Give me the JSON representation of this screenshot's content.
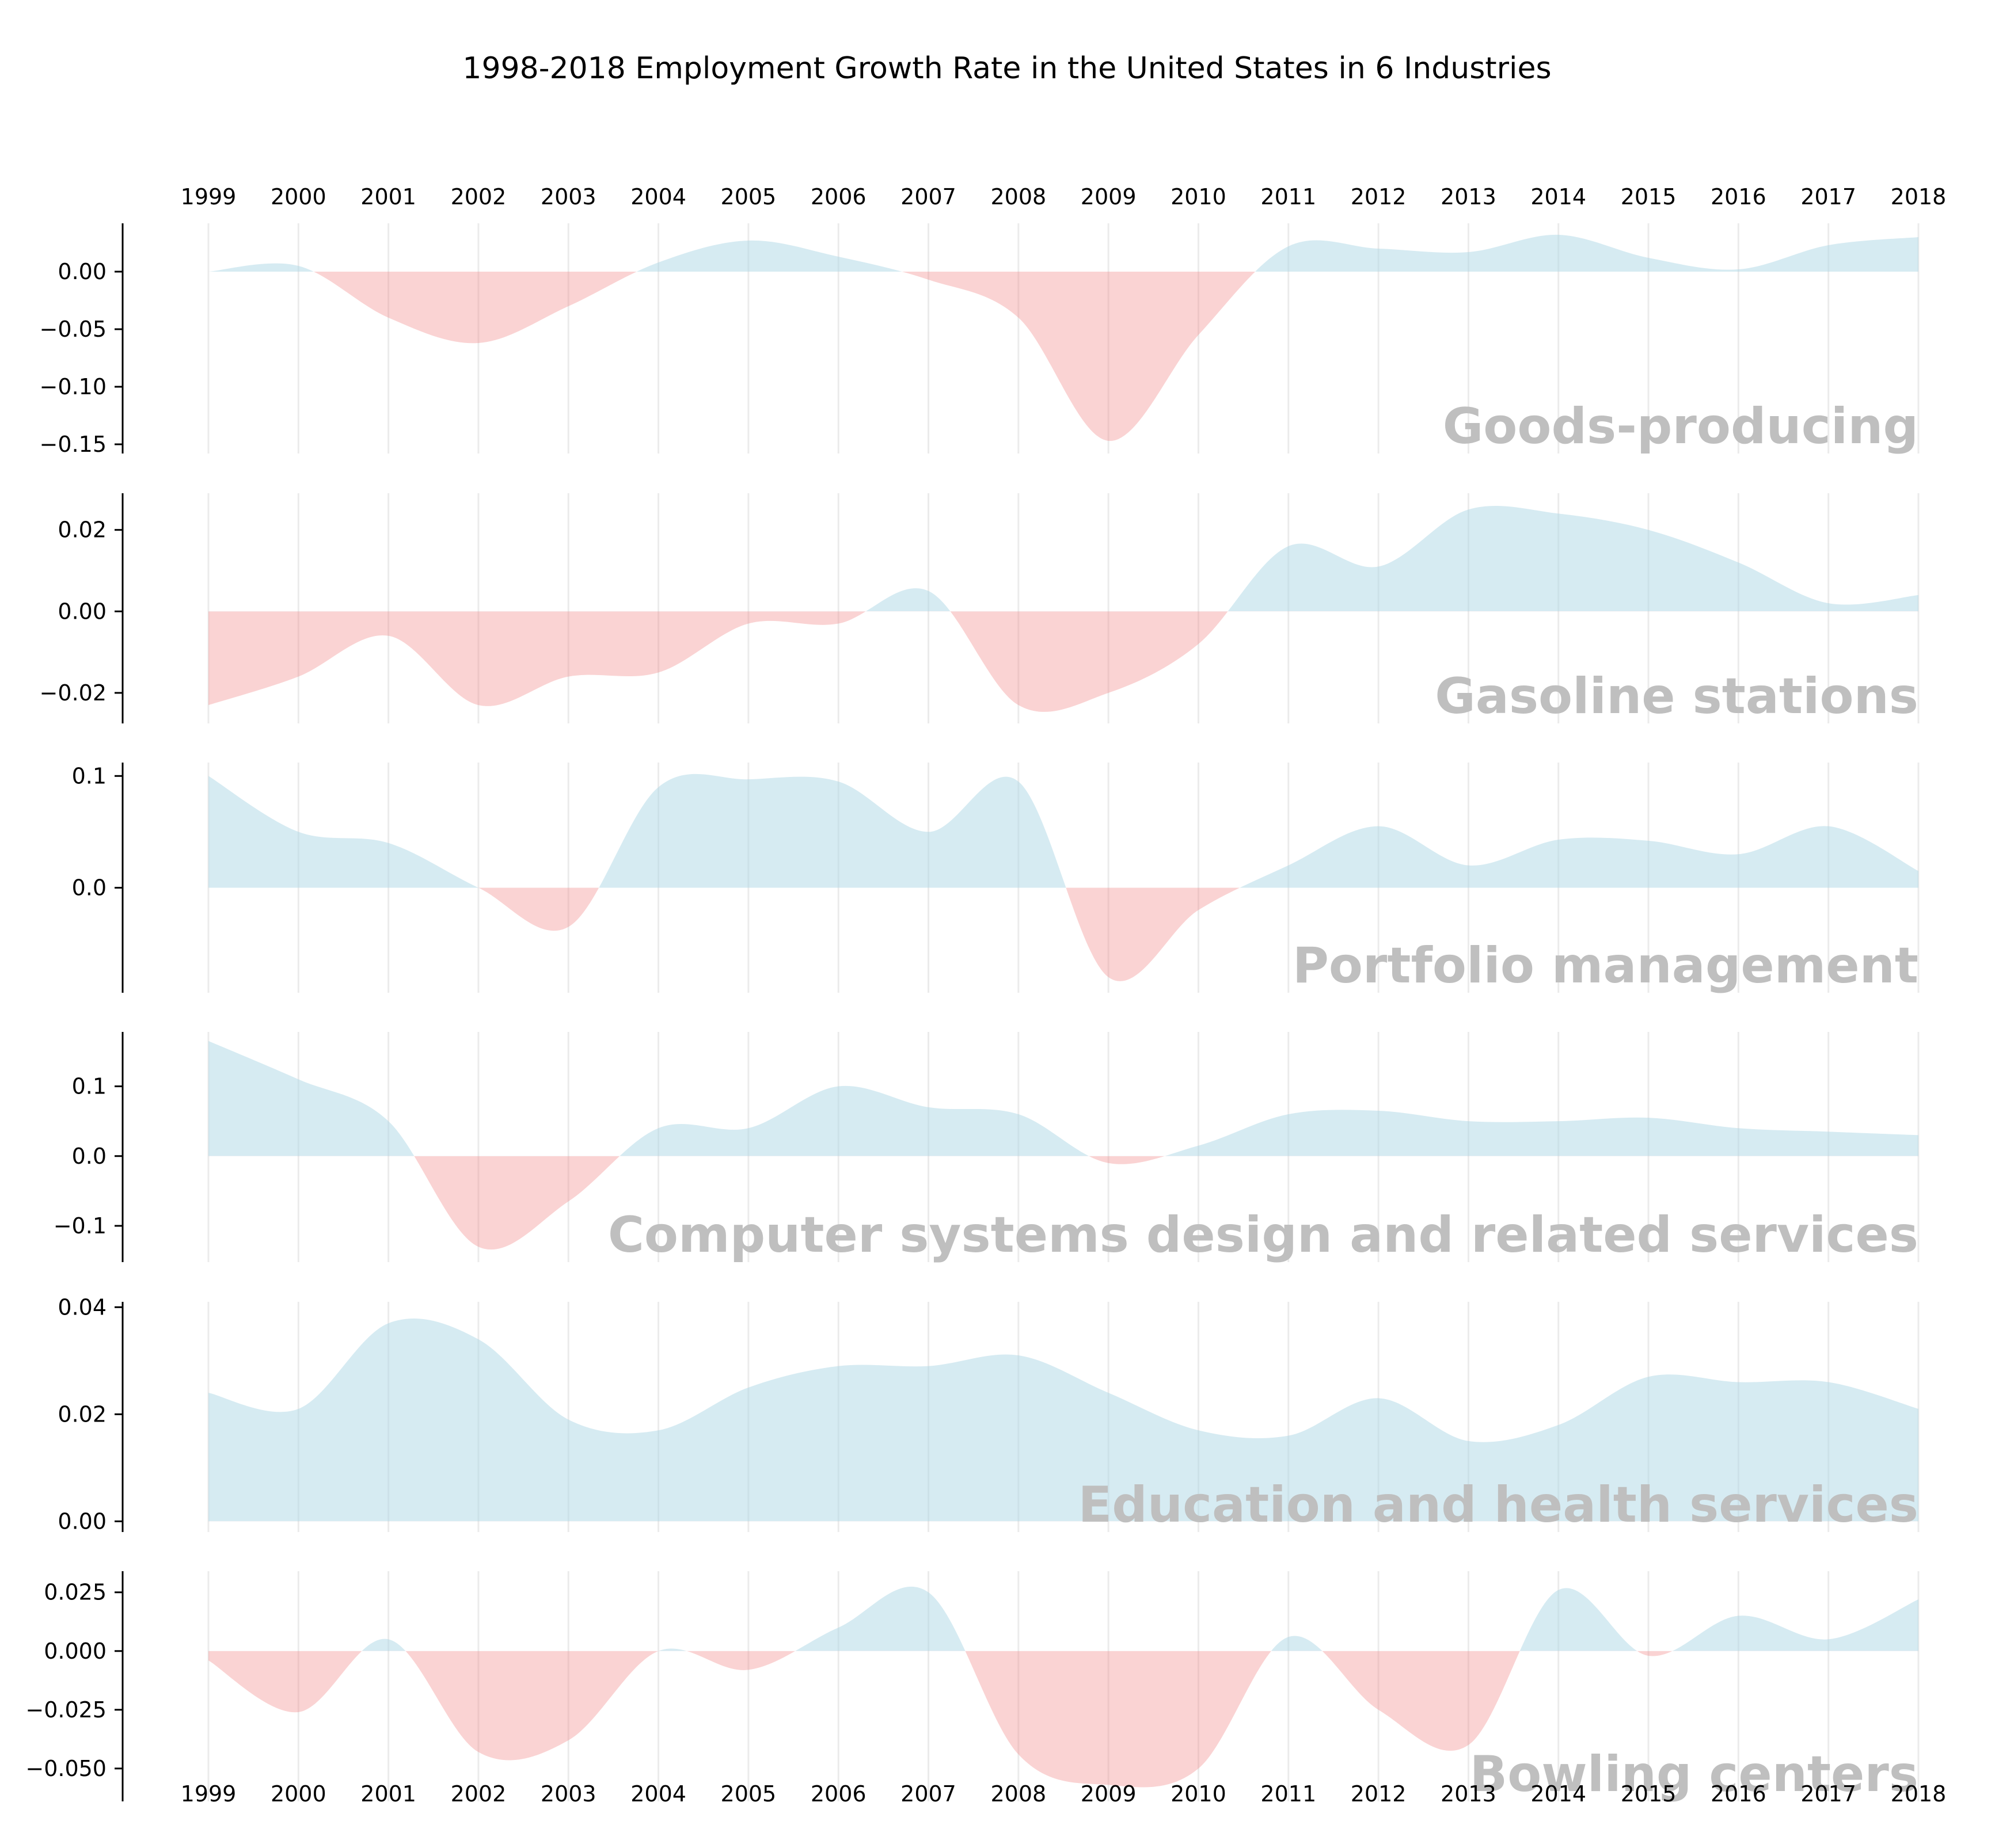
{
  "chart_data": {
    "type": "area",
    "title": "1998-2018 Employment Growth Rate in the United States in 6 Industries",
    "x": [
      "1999",
      "2000",
      "2001",
      "2002",
      "2003",
      "2004",
      "2005",
      "2006",
      "2007",
      "2008",
      "2009",
      "2010",
      "2011",
      "2012",
      "2013",
      "2014",
      "2015",
      "2016",
      "2017",
      "2018"
    ],
    "x_axis_position": "top and bottom",
    "grid": "vertical lines at each year",
    "positive_color": "#add8e6",
    "negative_color": "#f08080",
    "label_color": "#bfbfbf",
    "panels": [
      {
        "name": "Goods-producing",
        "yticks": [
          "0.00",
          "−0.05",
          "−0.10",
          "−0.15"
        ],
        "ytick_values": [
          0,
          -0.05,
          -0.1,
          -0.15
        ],
        "ylim": [
          -0.158,
          0.042
        ],
        "values": [
          0.0,
          0.005,
          -0.04,
          -0.062,
          -0.03,
          0.008,
          0.027,
          0.013,
          -0.007,
          -0.04,
          -0.147,
          -0.055,
          0.022,
          0.02,
          0.017,
          0.032,
          0.012,
          0.002,
          0.023,
          0.03
        ]
      },
      {
        "name": "Gasoline stations",
        "yticks": [
          "0.02",
          "0.00",
          "−0.02"
        ],
        "ytick_values": [
          0.02,
          0,
          -0.02
        ],
        "ylim": [
          -0.0275,
          0.029
        ],
        "values": [
          -0.023,
          -0.016,
          -0.006,
          -0.023,
          -0.016,
          -0.015,
          -0.003,
          -0.003,
          0.005,
          -0.023,
          -0.02,
          -0.008,
          0.016,
          0.011,
          0.025,
          0.024,
          0.02,
          0.012,
          0.002,
          0.004
        ]
      },
      {
        "name": "Portfolio management",
        "yticks": [
          "0.1",
          "0.0"
        ],
        "ytick_values": [
          0.1,
          0
        ],
        "ylim": [
          -0.094,
          0.112
        ],
        "values": [
          0.1,
          0.05,
          0.04,
          0.0,
          -0.035,
          0.09,
          0.097,
          0.095,
          0.05,
          0.095,
          -0.08,
          -0.02,
          0.02,
          0.055,
          0.02,
          0.043,
          0.042,
          0.03,
          0.055,
          0.015
        ]
      },
      {
        "name": "Computer systems design and related services",
        "yticks": [
          "0.1",
          "0.0",
          "−0.1"
        ],
        "ytick_values": [
          0.1,
          0,
          -0.1
        ],
        "ylim": [
          -0.152,
          0.178
        ],
        "values": [
          0.165,
          0.11,
          0.05,
          -0.13,
          -0.065,
          0.04,
          0.04,
          0.1,
          0.07,
          0.06,
          -0.01,
          0.015,
          0.06,
          0.065,
          0.05,
          0.05,
          0.055,
          0.04,
          0.035,
          0.03
        ]
      },
      {
        "name": "Education and health services",
        "yticks": [
          "0.04",
          "0.02",
          "0.00"
        ],
        "ytick_values": [
          0.04,
          0.02,
          0
        ],
        "ylim": [
          -0.002,
          0.041
        ],
        "values": [
          0.024,
          0.021,
          0.037,
          0.034,
          0.019,
          0.017,
          0.025,
          0.029,
          0.029,
          0.031,
          0.024,
          0.017,
          0.016,
          0.023,
          0.015,
          0.018,
          0.027,
          0.026,
          0.026,
          0.021
        ]
      },
      {
        "name": "Bowling centers",
        "yticks": [
          "0.025",
          "0.000",
          "−0.025",
          "−0.050"
        ],
        "ytick_values": [
          0.025,
          0,
          -0.025,
          -0.05
        ],
        "ylim": [
          -0.064,
          0.034
        ],
        "values": [
          -0.004,
          -0.026,
          0.005,
          -0.043,
          -0.038,
          0.0,
          -0.008,
          0.01,
          0.025,
          -0.044,
          -0.057,
          -0.05,
          0.006,
          -0.025,
          -0.04,
          0.026,
          -0.002,
          0.015,
          0.005,
          0.022
        ]
      }
    ]
  }
}
